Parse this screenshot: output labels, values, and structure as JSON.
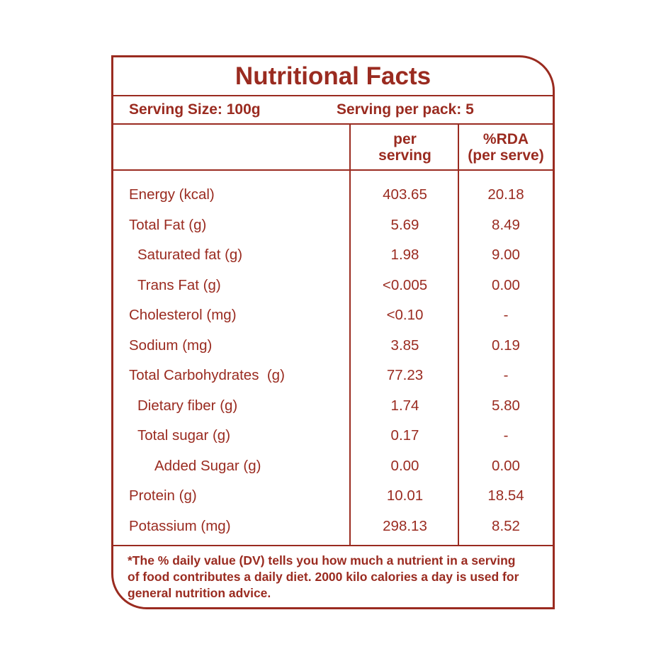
{
  "accent_color": "#9a2b20",
  "label": {
    "title": "Nutritional Facts",
    "serving_size": "Serving Size: 100g",
    "serving_per_pack": "Serving per pack: 5",
    "columns": {
      "per_serving": "per\nserving",
      "rda": "%RDA\n(per serve)"
    },
    "rows": [
      {
        "name": "Energy (kcal)",
        "indent": 0,
        "per_serving": "403.65",
        "rda_per_serve": "20.18"
      },
      {
        "name": "Total Fat (g)",
        "indent": 0,
        "per_serving": "5.69",
        "rda_per_serve": "8.49"
      },
      {
        "name": "Saturated fat (g)",
        "indent": 1,
        "per_serving": "1.98",
        "rda_per_serve": "9.00"
      },
      {
        "name": "Trans Fat (g)",
        "indent": 1,
        "per_serving": "<0.005",
        "rda_per_serve": "0.00"
      },
      {
        "name": "Cholesterol (mg)",
        "indent": 0,
        "per_serving": "<0.10",
        "rda_per_serve": "-"
      },
      {
        "name": "Sodium (mg)",
        "indent": 0,
        "per_serving": "3.85",
        "rda_per_serve": "0.19"
      },
      {
        "name": "Total Carbohydrates  (g)",
        "indent": 0,
        "per_serving": "77.23",
        "rda_per_serve": "-"
      },
      {
        "name": "Dietary fiber (g)",
        "indent": 1,
        "per_serving": "1.74",
        "rda_per_serve": "5.80"
      },
      {
        "name": "Total sugar (g)",
        "indent": 1,
        "per_serving": "0.17",
        "rda_per_serve": "-"
      },
      {
        "name": "Added Sugar (g)",
        "indent": 2,
        "per_serving": "0.00",
        "rda_per_serve": "0.00"
      },
      {
        "name": "Protein (g)",
        "indent": 0,
        "per_serving": "10.01",
        "rda_per_serve": "18.54"
      },
      {
        "name": "Potassium (mg)",
        "indent": 0,
        "per_serving": "298.13",
        "rda_per_serve": "8.52"
      }
    ],
    "footnote": "*The % daily value (DV) tells you how much a nutrient in a serving\nof food contributes a daily diet. 2000 kilo calories a day is used for\ngeneral nutrition advice."
  }
}
